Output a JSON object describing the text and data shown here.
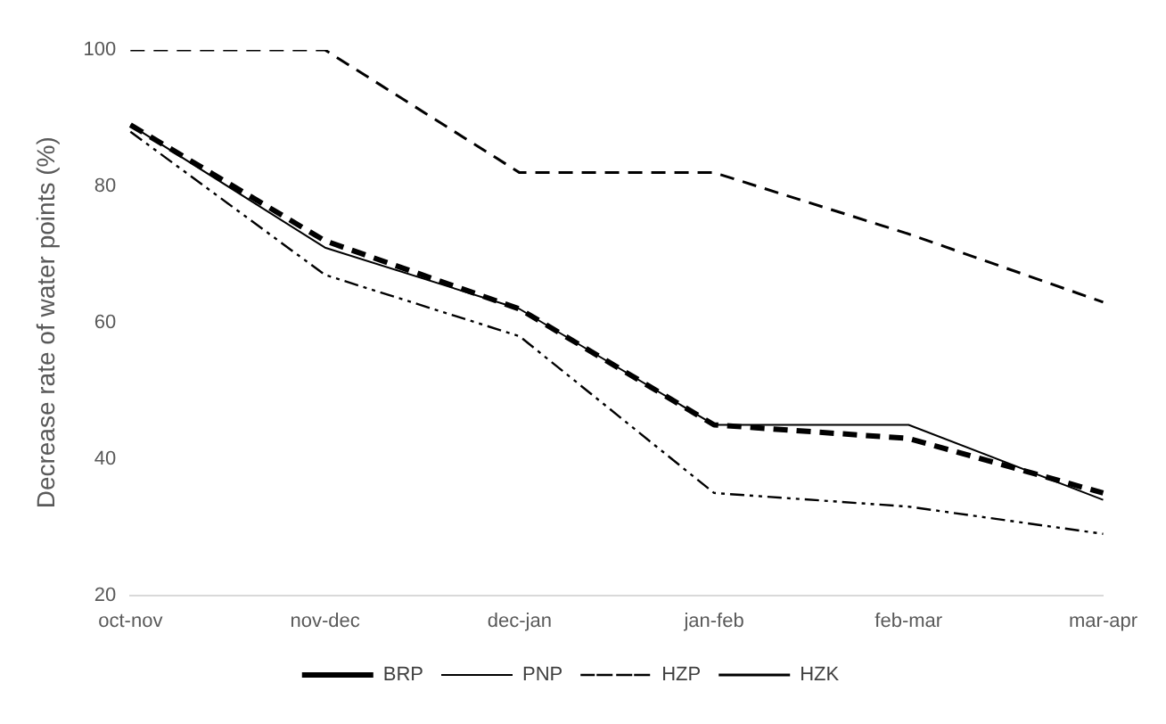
{
  "chart_data": {
    "type": "line",
    "ylabel": "Decrease rate of water points (%)",
    "categories": [
      "oct-nov",
      "nov-dec",
      "dec-jan",
      "jan-feb",
      "feb-mar",
      "mar-apr"
    ],
    "series": [
      {
        "name": "BRP",
        "color": "#000000",
        "line_style": "dashed",
        "values": [
          89,
          72,
          62,
          45,
          43,
          35
        ]
      },
      {
        "name": "PNP",
        "color": "#000000",
        "line_style": "solid",
        "values": [
          89,
          71,
          62,
          45,
          45,
          34
        ]
      },
      {
        "name": "HZP",
        "color": "#000000",
        "line_style": "dotted",
        "values": [
          88,
          67,
          58,
          35,
          33,
          29
        ]
      },
      {
        "name": "HZK",
        "color": "#000000",
        "line_style": "dashed",
        "values": [
          100,
          100,
          82,
          82,
          73,
          63
        ]
      }
    ],
    "ylim": [
      20,
      100
    ],
    "yticks": [
      20,
      40,
      60,
      80,
      100
    ],
    "grid": false,
    "legend": "bottom",
    "marker": "none"
  }
}
